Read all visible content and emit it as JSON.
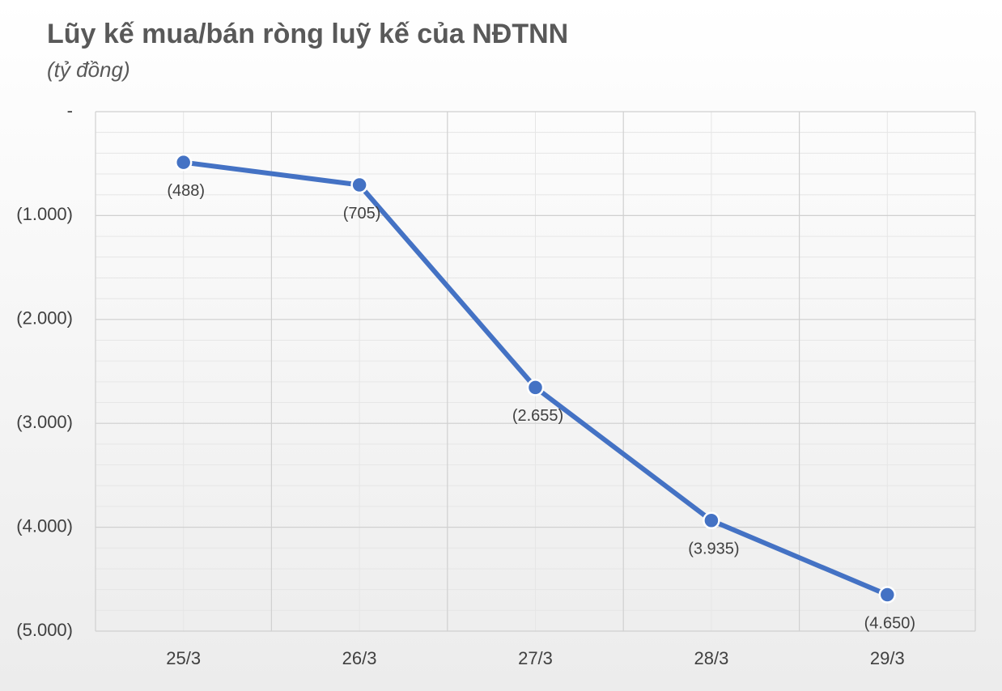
{
  "chart_data": {
    "type": "line",
    "title": "Lũy kế mua/bán ròng luỹ kế của NĐTNN",
    "subtitle": "(tỷ đồng)",
    "categories": [
      "25/3",
      "26/3",
      "27/3",
      "28/3",
      "29/3"
    ],
    "series": [
      {
        "name": "Lũy kế mua/bán ròng",
        "color": "#4472c4",
        "values": [
          -488,
          -705,
          -2655,
          -3935,
          -4650
        ],
        "value_labels": [
          "(488)",
          "(705)",
          "(2.655)",
          "(3.935)",
          "(4.650)"
        ]
      }
    ],
    "ylim": [
      -5000,
      0
    ],
    "yticks": [
      {
        "value": 0,
        "label": "-"
      },
      {
        "value": -1000,
        "label": "(1.000)"
      },
      {
        "value": -2000,
        "label": "(2.000)"
      },
      {
        "value": -3000,
        "label": "(3.000)"
      },
      {
        "value": -4000,
        "label": "(4.000)"
      },
      {
        "value": -5000,
        "label": "(5.000)"
      }
    ],
    "grid": true
  }
}
